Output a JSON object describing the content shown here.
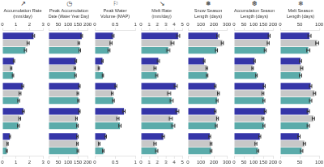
{
  "chart_data": [
    {
      "type": "bar",
      "orientation": "horizontal",
      "title": "Accumulation Rate\n(mm/day)",
      "annotations": [
        "↗"
      ],
      "categories": [
        null,
        null,
        null,
        null,
        null
      ],
      "series": [
        {
          "color": "#3535a8",
          "values": [
            2.3,
            0.85,
            1.5,
            1.55,
            0.55
          ],
          "errors": [
            0.08,
            0.05,
            0.07,
            0.07,
            0.045
          ]
        },
        {
          "color": "#c8c8c8",
          "values": [
            1.9,
            0.65,
            1.3,
            1.28,
            0.38
          ],
          "errors": [
            0.08,
            0.05,
            0.07,
            0.07,
            0.045
          ]
        },
        {
          "color": "#5aabaa",
          "values": [
            1.7,
            0.78,
            1.2,
            1.18,
            0.32
          ],
          "errors": [
            0.08,
            0.05,
            0.07,
            0.07,
            0.045
          ]
        }
      ],
      "xlim": [
        0,
        3
      ],
      "xticks": [
        0,
        1,
        2,
        3
      ],
      "grid": false,
      "tick_labels": "x"
    },
    {
      "type": "bar",
      "orientation": "horizontal",
      "title": "Peak Accumulation\nDate (Water Year Day)",
      "annotations": [
        "◷"
      ],
      "categories": [
        null,
        null,
        null,
        null,
        null
      ],
      "series": [
        {
          "color": "#3535a8",
          "values": [
            170,
            140,
            158,
            158,
            148
          ],
          "errors": [
            4,
            4,
            4,
            4,
            4
          ]
        },
        {
          "color": "#c8c8c8",
          "values": [
            155,
            135,
            150,
            143,
            148
          ],
          "errors": [
            4,
            4,
            4,
            4,
            4
          ]
        },
        {
          "color": "#5aabaa",
          "values": [
            160,
            138,
            153,
            148,
            150
          ],
          "errors": [
            4,
            4,
            4,
            4,
            4
          ]
        }
      ],
      "xlim": [
        0,
        200
      ],
      "xticks": [
        0,
        50,
        100,
        150,
        200
      ],
      "grid": false,
      "tick_labels": "x"
    },
    {
      "type": "bar",
      "orientation": "horizontal",
      "title": "Peak Water\nVolume (MAP)",
      "annotations": [
        "⚐"
      ],
      "categories": [
        null,
        null,
        null,
        null,
        null
      ],
      "series": [
        {
          "color": "#3535a8",
          "values": [
            0.45,
            0.19,
            0.52,
            0.72,
            0.27
          ],
          "errors": [
            0.025,
            0.015,
            0.022,
            0.028,
            0.018
          ]
        },
        {
          "color": "#c8c8c8",
          "values": [
            0.4,
            0.1,
            0.43,
            0.57,
            0.11
          ],
          "errors": [
            0.025,
            0.015,
            0.022,
            0.028,
            0.018
          ]
        },
        {
          "color": "#5aabaa",
          "values": [
            0.35,
            0.2,
            0.46,
            0.62,
            0.21
          ],
          "errors": [
            0.025,
            0.015,
            0.022,
            0.028,
            0.018
          ]
        }
      ],
      "xlim": [
        0,
        1
      ],
      "xticks": [
        0,
        0.5,
        1
      ],
      "grid": false,
      "tick_labels": "x"
    },
    {
      "type": "bar",
      "orientation": "horizontal",
      "title": "Melt Rate\n(mm/day)",
      "annotations": [
        "↘"
      ],
      "categories": [
        null,
        null,
        null,
        null,
        null
      ],
      "series": [
        {
          "color": "#3535a8",
          "values": [
            4.5,
            2.1,
            4.2,
            4.4,
            2.7
          ],
          "errors": [
            0.18,
            0.12,
            0.18,
            0.18,
            0.14
          ]
        },
        {
          "color": "#c8c8c8",
          "values": [
            3.8,
            1.7,
            3.4,
            3.6,
            1.7
          ],
          "errors": [
            0.18,
            0.12,
            0.18,
            0.18,
            0.14
          ]
        },
        {
          "color": "#5aabaa",
          "values": [
            3.3,
            1.9,
            3.7,
            3.9,
            1.9
          ],
          "errors": [
            0.18,
            0.12,
            0.18,
            0.18,
            0.14
          ]
        }
      ],
      "xlim": [
        0,
        5
      ],
      "xticks": [
        0,
        1,
        2,
        3,
        4,
        5
      ],
      "grid": false,
      "tick_labels": "x"
    },
    {
      "type": "bar",
      "orientation": "horizontal",
      "title": "Snow Season\nLength (days)",
      "annotations": [
        "❅"
      ],
      "categories": [
        null,
        null,
        null,
        null,
        null
      ],
      "series": [
        {
          "color": "#3535a8",
          "values": [
            230,
            125,
            210,
            210,
            168
          ],
          "errors": [
            8,
            6,
            7,
            7,
            7
          ]
        },
        {
          "color": "#c8c8c8",
          "values": [
            265,
            145,
            235,
            228,
            178
          ],
          "errors": [
            8,
            6,
            7,
            7,
            7
          ]
        },
        {
          "color": "#5aabaa",
          "values": [
            220,
            148,
            225,
            218,
            178
          ],
          "errors": [
            8,
            6,
            7,
            7,
            7
          ]
        }
      ],
      "xlim": [
        0,
        300
      ],
      "xticks": [
        0,
        100,
        200,
        300
      ],
      "grid": false,
      "tick_labels": "x"
    },
    {
      "type": "bar",
      "orientation": "horizontal",
      "title": "Accumulation Season\nLength (days)",
      "annotations": [
        "❆"
      ],
      "categories": [
        null,
        null,
        null,
        null,
        null
      ],
      "series": [
        {
          "color": "#3535a8",
          "values": [
            180,
            105,
            155,
            160,
            132
          ],
          "errors": [
            5,
            4,
            5,
            5,
            5
          ]
        },
        {
          "color": "#c8c8c8",
          "values": [
            175,
            95,
            148,
            148,
            112
          ],
          "errors": [
            5,
            4,
            5,
            5,
            5
          ]
        },
        {
          "color": "#5aabaa",
          "values": [
            160,
            115,
            153,
            153,
            122
          ],
          "errors": [
            5,
            4,
            5,
            5,
            5
          ]
        }
      ],
      "xlim": [
        0,
        200
      ],
      "xticks": [
        0,
        50,
        100,
        150,
        200
      ],
      "grid": false,
      "tick_labels": "x"
    },
    {
      "type": "bar",
      "orientation": "horizontal",
      "title": "Melt Season\nLength (days)",
      "annotations": [
        "❄"
      ],
      "categories": [
        null,
        null,
        null,
        null,
        null
      ],
      "series": [
        {
          "color": "#3535a8",
          "values": [
            75,
            52,
            78,
            72,
            48
          ],
          "errors": [
            4,
            3,
            3,
            3,
            3
          ]
        },
        {
          "color": "#c8c8c8",
          "values": [
            95,
            55,
            88,
            85,
            62
          ],
          "errors": [
            4,
            3,
            3,
            3,
            3
          ]
        },
        {
          "color": "#5aabaa",
          "values": [
            72,
            52,
            78,
            72,
            55
          ],
          "errors": [
            4,
            3,
            3,
            3,
            3
          ]
        }
      ],
      "xlim": [
        0,
        100
      ],
      "xticks": [
        0,
        50,
        100
      ],
      "grid": false,
      "tick_labels": "x"
    }
  ]
}
